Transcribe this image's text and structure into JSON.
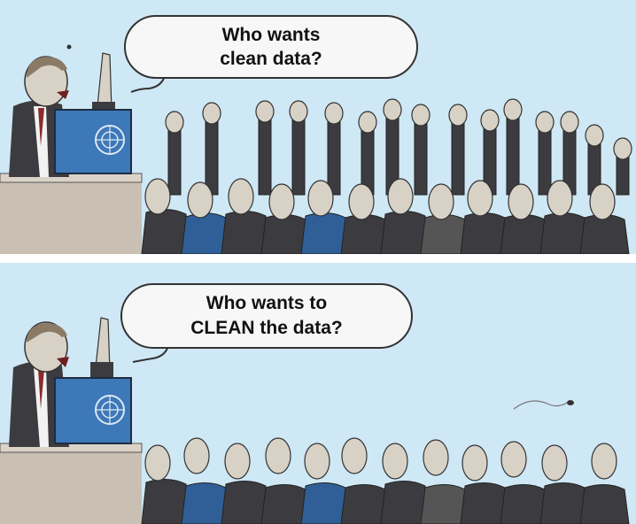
{
  "panels": {
    "top": {
      "speech_line1": "Who wants",
      "speech_line2": "clean data?"
    },
    "bottom": {
      "speech_line1": "Who wants to",
      "speech_line2": "CLEAN the data?"
    }
  },
  "colors": {
    "sky": "#cfe8f6",
    "podium": "#c9bfb3",
    "monitor": "#3d78b8",
    "suit": "#3c3c40",
    "skin": "#d8d2c6"
  },
  "icons": [
    "un-emblem-icon"
  ]
}
